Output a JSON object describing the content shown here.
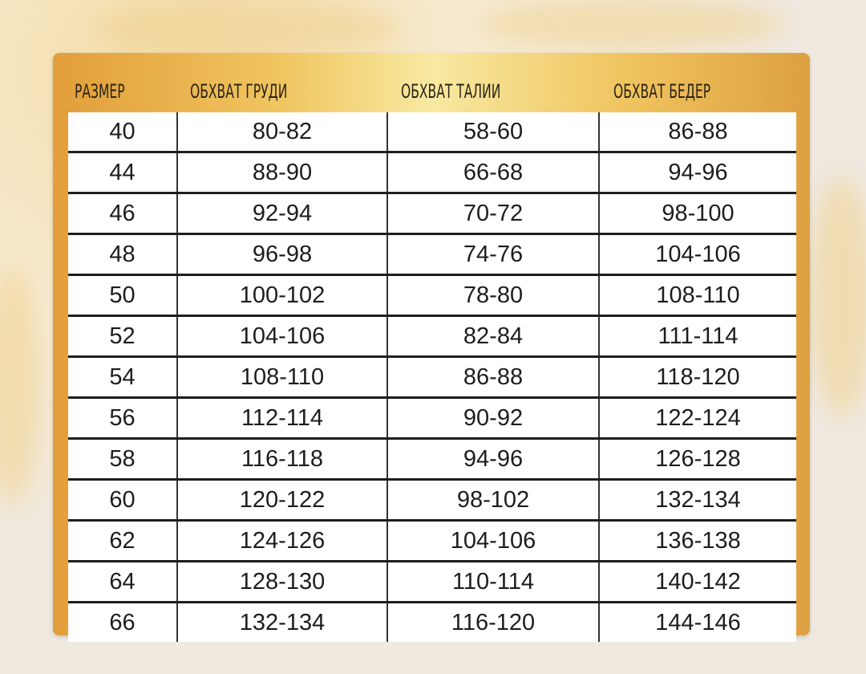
{
  "headers": [
    "РАЗМЕР",
    "ОБХВАТ ГРУДИ",
    "ОБХВАТ ТАЛИИ",
    "ОБХВАТ БЕДЕР"
  ],
  "rows": [
    [
      "40",
      "80-82",
      "58-60",
      "86-88"
    ],
    [
      "44",
      "88-90",
      "66-68",
      "94-96"
    ],
    [
      "46",
      "92-94",
      "70-72",
      "98-100"
    ],
    [
      "48",
      "96-98",
      "74-76",
      "104-106"
    ],
    [
      "50",
      "100-102",
      "78-80",
      "108-110"
    ],
    [
      "52",
      "104-106",
      "82-84",
      "111-114"
    ],
    [
      "54",
      "108-110",
      "86-88",
      "118-120"
    ],
    [
      "56",
      "112-114",
      "90-92",
      "122-124"
    ],
    [
      "58",
      "116-118",
      "94-96",
      "126-128"
    ],
    [
      "60",
      "120-122",
      "98-102",
      "132-134"
    ],
    [
      "62",
      "124-126",
      "104-106",
      "136-138"
    ],
    [
      "64",
      "128-130",
      "110-114",
      "140-142"
    ],
    [
      "66",
      "132-134",
      "116-120",
      "144-146"
    ]
  ],
  "colors": {
    "frame": "#f0c560",
    "frame_edge": "#e29e3a",
    "text": "#1d1d1d"
  }
}
